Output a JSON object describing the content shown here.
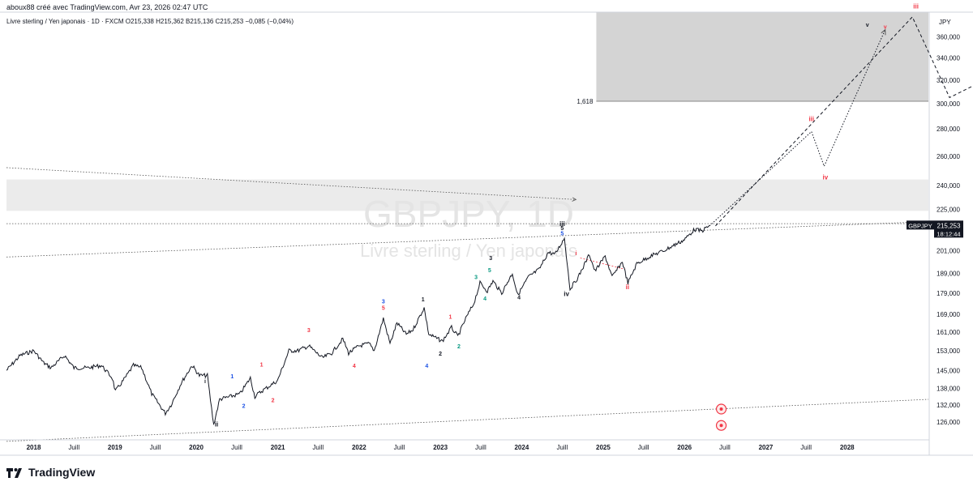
{
  "header": {
    "author": "aboux88 créé avec TradingView.com, Avr 23, 2026 02:47 UTC",
    "symbol_line": "Livre sterling / Yen japonais · 1D · FXCM  O215,338  H215,362  B215,136  C215,253  −0,085 (−0,04%)"
  },
  "watermark": {
    "ticker": "GBPJPY, 1D",
    "name": "Livre sterling / Yen japonais"
  },
  "brand": {
    "label": "TradingView"
  },
  "chart_data": {
    "type": "line",
    "title": "GBPJPY, 1D",
    "currency": "JPY",
    "y_scale": "log",
    "ylim": [
      120,
      385
    ],
    "y_ticks": [
      126,
      132,
      138,
      145,
      153,
      161,
      169,
      179,
      189,
      201,
      225,
      240,
      260,
      280,
      300,
      320,
      340,
      360
    ],
    "y_tick_labels": [
      "126,000",
      "132,000",
      "138,000",
      "145,000",
      "153,000",
      "161,000",
      "169,000",
      "179,000",
      "189,000",
      "201,000",
      "225,000",
      "240,000",
      "260,000",
      "280,000",
      "300,000",
      "320,000",
      "340,000",
      "360,000"
    ],
    "x_range": [
      "2017-09-01",
      "2028-12-31"
    ],
    "x_ticks": [
      {
        "date": "2018-01-01",
        "label": "2018"
      },
      {
        "date": "2018-07-01",
        "label": "Juill"
      },
      {
        "date": "2019-01-01",
        "label": "2019"
      },
      {
        "date": "2019-07-01",
        "label": "Juill"
      },
      {
        "date": "2020-01-01",
        "label": "2020"
      },
      {
        "date": "2020-07-01",
        "label": "Juill"
      },
      {
        "date": "2021-01-01",
        "label": "2021"
      },
      {
        "date": "2021-07-01",
        "label": "Juill"
      },
      {
        "date": "2022-01-01",
        "label": "2022"
      },
      {
        "date": "2022-07-01",
        "label": "Juill"
      },
      {
        "date": "2023-01-01",
        "label": "2023"
      },
      {
        "date": "2023-07-01",
        "label": "Juill"
      },
      {
        "date": "2024-01-01",
        "label": "2024"
      },
      {
        "date": "2024-07-01",
        "label": "Juill"
      },
      {
        "date": "2025-01-01",
        "label": "2025"
      },
      {
        "date": "2025-07-01",
        "label": "Juill"
      },
      {
        "date": "2026-01-01",
        "label": "2026"
      },
      {
        "date": "2026-07-01",
        "label": "Juill"
      },
      {
        "date": "2027-01-01",
        "label": "2027"
      },
      {
        "date": "2027-07-01",
        "label": "Juill"
      },
      {
        "date": "2028-01-01",
        "label": "2028"
      }
    ],
    "series": [
      {
        "color": "#131722",
        "points": [
          [
            "2017-09-01",
            145
          ],
          [
            "2017-11-01",
            151
          ],
          [
            "2018-01-01",
            153
          ],
          [
            "2018-02-15",
            148
          ],
          [
            "2018-03-20",
            146
          ],
          [
            "2018-05-20",
            151
          ],
          [
            "2018-07-01",
            146
          ],
          [
            "2018-09-01",
            146
          ],
          [
            "2018-11-01",
            147
          ],
          [
            "2018-12-20",
            142
          ],
          [
            "2019-01-03",
            137
          ],
          [
            "2019-02-15",
            142
          ],
          [
            "2019-03-25",
            147
          ],
          [
            "2019-05-01",
            146
          ],
          [
            "2019-06-15",
            136
          ],
          [
            "2019-08-15",
            129
          ],
          [
            "2019-09-10",
            132
          ],
          [
            "2019-10-25",
            140
          ],
          [
            "2019-12-13",
            147
          ],
          [
            "2020-01-15",
            143
          ],
          [
            "2020-02-20",
            143
          ],
          [
            "2020-03-19",
            125
          ],
          [
            "2020-04-15",
            134
          ],
          [
            "2020-06-01",
            135
          ],
          [
            "2020-07-15",
            136
          ],
          [
            "2020-08-31",
            142
          ],
          [
            "2020-09-20",
            135
          ],
          [
            "2020-10-20",
            137
          ],
          [
            "2020-12-31",
            141
          ],
          [
            "2021-02-20",
            153
          ],
          [
            "2021-04-01",
            153
          ],
          [
            "2021-05-20",
            155
          ],
          [
            "2021-07-20",
            150
          ],
          [
            "2021-08-31",
            152
          ],
          [
            "2021-10-20",
            158
          ],
          [
            "2021-11-15",
            152
          ],
          [
            "2021-12-31",
            155
          ],
          [
            "2022-02-15",
            156
          ],
          [
            "2022-03-10",
            153
          ],
          [
            "2022-04-20",
            167
          ],
          [
            "2022-05-20",
            156
          ],
          [
            "2022-06-20",
            165
          ],
          [
            "2022-08-01",
            160
          ],
          [
            "2022-08-31",
            162
          ],
          [
            "2022-10-20",
            172
          ],
          [
            "2022-11-10",
            160
          ],
          [
            "2022-12-20",
            158
          ],
          [
            "2023-01-10",
            157
          ],
          [
            "2023-02-20",
            163
          ],
          [
            "2023-03-20",
            159
          ],
          [
            "2023-04-25",
            167
          ],
          [
            "2023-05-31",
            174
          ],
          [
            "2023-06-28",
            184
          ],
          [
            "2023-07-31",
            180
          ],
          [
            "2023-08-25",
            185
          ],
          [
            "2023-10-03",
            179
          ],
          [
            "2023-11-20",
            189
          ],
          [
            "2023-12-14",
            178
          ],
          [
            "2024-01-31",
            187
          ],
          [
            "2024-03-20",
            191
          ],
          [
            "2024-04-29",
            200
          ],
          [
            "2024-05-30",
            199
          ],
          [
            "2024-07-11",
            208
          ],
          [
            "2024-08-05",
            181
          ],
          [
            "2024-09-11",
            187
          ],
          [
            "2024-10-31",
            199
          ],
          [
            "2024-11-25",
            190
          ],
          [
            "2025-01-10",
            198
          ],
          [
            "2025-02-10",
            187
          ],
          [
            "2025-03-28",
            195
          ],
          [
            "2025-04-22",
            184
          ],
          [
            "2025-06-01",
            194
          ],
          [
            "2025-08-01",
            198
          ],
          [
            "2025-10-01",
            201
          ],
          [
            "2025-11-15",
            204
          ],
          [
            "2025-12-31",
            207
          ],
          [
            "2026-02-15",
            213
          ],
          [
            "2026-03-20",
            212
          ],
          [
            "2026-04-23",
            215.25
          ]
        ]
      }
    ],
    "current_price": {
      "label": "GBPJPY",
      "value": "215,253",
      "countdown": "18:12:44",
      "color": "#131722"
    },
    "zones": [
      {
        "from_date": "2024-12-01",
        "to_date": "2028-12-31",
        "y_low": 302,
        "y_high": 385,
        "color": "#d4d4d4",
        "label": "1,618"
      },
      {
        "from_date": "2017-09-01",
        "to_date": "2028-12-31",
        "y_low": 224,
        "y_high": 244,
        "color": "#ebebeb"
      }
    ],
    "annotations": [
      {
        "text": "i",
        "date": "2020-02-10",
        "y": 140,
        "color": "#131722"
      },
      {
        "text": "ii",
        "date": "2020-04-01",
        "y": 124.5,
        "color": "#131722"
      },
      {
        "text": "1",
        "date": "2020-06-10",
        "y": 142,
        "color": "#1e53e5"
      },
      {
        "text": "2",
        "date": "2020-08-01",
        "y": 131,
        "color": "#1e53e5"
      },
      {
        "text": "1",
        "date": "2020-10-20",
        "y": 146.5,
        "color": "#f23645"
      },
      {
        "text": "2",
        "date": "2020-12-10",
        "y": 133,
        "color": "#f23645"
      },
      {
        "text": "3",
        "date": "2021-05-20",
        "y": 161,
        "color": "#f23645"
      },
      {
        "text": "4",
        "date": "2021-12-10",
        "y": 146,
        "color": "#f23645"
      },
      {
        "text": "3",
        "date": "2022-04-20",
        "y": 174,
        "color": "#1e53e5"
      },
      {
        "text": "5",
        "date": "2022-04-20",
        "y": 171,
        "color": "#f23645"
      },
      {
        "text": "4",
        "date": "2022-11-01",
        "y": 146,
        "color": "#1e53e5"
      },
      {
        "text": "1",
        "date": "2022-10-15",
        "y": 175,
        "color": "#131722"
      },
      {
        "text": "2",
        "date": "2023-01-01",
        "y": 151,
        "color": "#131722"
      },
      {
        "text": "1",
        "date": "2023-02-15",
        "y": 167,
        "color": "#f23645"
      },
      {
        "text": "2",
        "date": "2023-03-25",
        "y": 154,
        "color": "#089981"
      },
      {
        "text": "3",
        "date": "2023-06-10",
        "y": 186,
        "color": "#089981"
      },
      {
        "text": "4",
        "date": "2023-07-20",
        "y": 175.5,
        "color": "#089981"
      },
      {
        "text": "5",
        "date": "2023-08-10",
        "y": 189.5,
        "color": "#089981"
      },
      {
        "text": "3",
        "date": "2023-08-15",
        "y": 196,
        "color": "#131722"
      },
      {
        "text": "4",
        "date": "2023-12-20",
        "y": 176,
        "color": "#131722"
      },
      {
        "text": "iii",
        "date": "2024-07-01",
        "y": 215,
        "color": "#131722"
      },
      {
        "text": "5",
        "date": "2024-07-01",
        "y": 212.5,
        "color": "#131722"
      },
      {
        "text": "5",
        "date": "2024-07-01",
        "y": 209.5,
        "color": "#1e53e5"
      },
      {
        "text": "iv",
        "date": "2024-07-20",
        "y": 177.5,
        "color": "#131722"
      },
      {
        "text": "i",
        "date": "2024-09-01",
        "y": 198.5,
        "color": "#f23645"
      },
      {
        "text": "ii",
        "date": "2025-04-20",
        "y": 181,
        "color": "#f23645"
      },
      {
        "text": "iii",
        "date": "2027-07-25",
        "y": 286,
        "color": "#f23645"
      },
      {
        "text": "iv",
        "date": "2027-09-25",
        "y": 244,
        "color": "#f23645"
      },
      {
        "text": "v",
        "date": "2028-06-20",
        "y": 368,
        "color": "#f23645"
      },
      {
        "text": "v",
        "date": "2028-04-01",
        "y": 370,
        "color": "#131722"
      },
      {
        "text": "iii",
        "date": "2028-11-05",
        "y": 389,
        "color": "#f23645"
      }
    ],
    "trendlines": [
      {
        "points": [
          [
            "2017-09-01",
            252
          ],
          [
            "2024-09-01",
            231
          ]
        ],
        "style": "dotted",
        "arrow": true,
        "color": "#555555"
      },
      {
        "points": [
          [
            "2017-09-01",
            197.5
          ],
          [
            "2028-12-31",
            217.5
          ]
        ],
        "style": "dotted",
        "color": "#555555"
      },
      {
        "points": [
          [
            "2017-09-01",
            119.5
          ],
          [
            "2028-12-31",
            134
          ]
        ],
        "style": "dotted",
        "color": "#555555"
      },
      {
        "points": [
          [
            "2017-09-01",
            216.3
          ],
          [
            "2028-12-31",
            216.3
          ]
        ],
        "style": "dotted",
        "color": "#555555"
      }
    ],
    "projections": [
      {
        "points": [
          [
            "2026-04-23",
            215
          ],
          [
            "2027-07-25",
            278
          ],
          [
            "2027-09-20",
            253
          ],
          [
            "2028-06-20",
            367
          ]
        ],
        "style": "dotted",
        "arrow": true,
        "color": "#131722"
      },
      {
        "points": [
          [
            "2026-05-20",
            215
          ],
          [
            "2028-10-20",
            380
          ],
          [
            "2029-04-05",
            305
          ],
          [
            "2029-10-01",
            322
          ]
        ],
        "style": "dashed",
        "color": "#131722"
      }
    ],
    "red_diagonal": {
      "points": [
        [
          "2024-09-20",
          197
        ],
        [
          "2025-04-10",
          191
        ]
      ],
      "color": "#f23645"
    },
    "event_icons": [
      {
        "date": "2026-06-15",
        "y": 130.5,
        "glyph": "☺"
      },
      {
        "date": "2026-06-15",
        "y": 124.8,
        "glyph": "◉"
      }
    ]
  }
}
